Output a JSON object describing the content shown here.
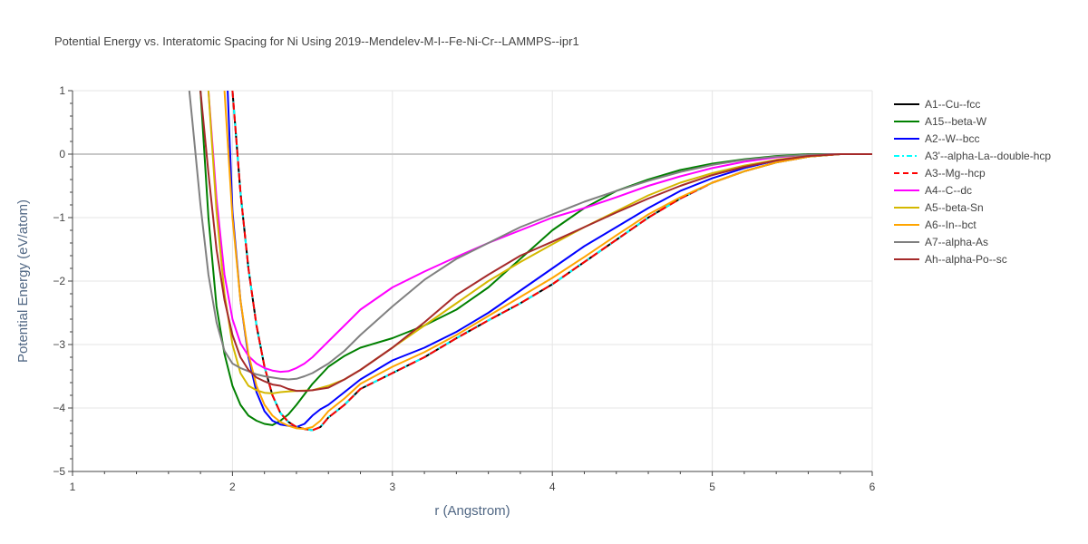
{
  "chart_data": {
    "type": "line",
    "title": "Potential Energy vs. Interatomic Spacing for Ni Using 2019--Mendelev-M-I--Fe-Ni-Cr--LAMMPS--ipr1",
    "xlabel": "r (Angstrom)",
    "ylabel": "Potential Energy (eV/atom)",
    "xlim": [
      1,
      6
    ],
    "ylim": [
      -5,
      1
    ],
    "xticks": [
      1,
      2,
      3,
      4,
      5,
      6
    ],
    "yticks": [
      -5,
      -4,
      -3,
      -2,
      -1,
      0,
      1
    ],
    "xtick_labels": [
      "1",
      "2",
      "3",
      "4",
      "5",
      "6"
    ],
    "ytick_labels": [
      "−5",
      "−4",
      "−3",
      "−2",
      "−1",
      "0",
      "1"
    ],
    "grid": true,
    "legend_position": "right",
    "series": [
      {
        "name": "A1--Cu--fcc",
        "color": "#000000",
        "dash": "solid",
        "x": [
          2.0,
          2.05,
          2.1,
          2.15,
          2.2,
          2.25,
          2.3,
          2.35,
          2.4,
          2.45,
          2.5,
          2.55,
          2.6,
          2.7,
          2.8,
          3.0,
          3.2,
          3.4,
          3.6,
          3.8,
          4.0,
          4.2,
          4.4,
          4.6,
          4.8,
          5.0,
          5.2,
          5.4,
          5.6,
          5.8,
          6.0
        ],
        "y": [
          1.0,
          -0.6,
          -1.8,
          -2.7,
          -3.35,
          -3.8,
          -4.08,
          -4.22,
          -4.3,
          -4.33,
          -4.35,
          -4.3,
          -4.15,
          -3.95,
          -3.7,
          -3.45,
          -3.2,
          -2.9,
          -2.62,
          -2.35,
          -2.05,
          -1.7,
          -1.35,
          -1.0,
          -0.7,
          -0.45,
          -0.27,
          -0.13,
          -0.04,
          0.0,
          0.0
        ]
      },
      {
        "name": "A15--beta-W",
        "color": "#008000",
        "dash": "solid",
        "x": [
          1.8,
          1.85,
          1.9,
          1.95,
          2.0,
          2.05,
          2.1,
          2.15,
          2.2,
          2.25,
          2.3,
          2.35,
          2.4,
          2.5,
          2.6,
          2.7,
          2.8,
          3.0,
          3.2,
          3.4,
          3.6,
          3.8,
          4.0,
          4.2,
          4.4,
          4.6,
          4.8,
          5.0,
          5.2,
          5.4,
          5.6,
          5.8,
          6.0
        ],
        "y": [
          1.0,
          -1.0,
          -2.4,
          -3.15,
          -3.65,
          -3.95,
          -4.12,
          -4.2,
          -4.25,
          -4.27,
          -4.2,
          -4.1,
          -3.95,
          -3.62,
          -3.35,
          -3.18,
          -3.05,
          -2.9,
          -2.7,
          -2.45,
          -2.1,
          -1.65,
          -1.2,
          -0.85,
          -0.58,
          -0.4,
          -0.25,
          -0.15,
          -0.08,
          -0.03,
          0.0,
          0.0,
          0.0
        ]
      },
      {
        "name": "A2--W--bcc",
        "color": "#0000ff",
        "dash": "solid",
        "x": [
          1.97,
          2.0,
          2.05,
          2.1,
          2.15,
          2.2,
          2.25,
          2.3,
          2.35,
          2.4,
          2.45,
          2.5,
          2.55,
          2.6,
          2.7,
          2.8,
          3.0,
          3.2,
          3.4,
          3.6,
          3.8,
          4.0,
          4.2,
          4.4,
          4.6,
          4.8,
          5.0,
          5.2,
          5.4,
          5.6,
          5.8,
          6.0
        ],
        "y": [
          1.0,
          -0.9,
          -2.3,
          -3.2,
          -3.75,
          -4.05,
          -4.2,
          -4.26,
          -4.28,
          -4.3,
          -4.25,
          -4.12,
          -4.02,
          -3.95,
          -3.75,
          -3.55,
          -3.25,
          -3.05,
          -2.8,
          -2.5,
          -2.15,
          -1.8,
          -1.45,
          -1.15,
          -0.85,
          -0.58,
          -0.38,
          -0.22,
          -0.1,
          -0.03,
          0.0,
          0.0
        ]
      },
      {
        "name": "A3'--alpha-La--double-hcp",
        "color": "#00ffff",
        "dash": "dashdot",
        "x": [
          2.0,
          2.05,
          2.1,
          2.15,
          2.2,
          2.25,
          2.3,
          2.35,
          2.4,
          2.45,
          2.5,
          2.55,
          2.6,
          2.7,
          2.8,
          3.0,
          3.2,
          3.4,
          3.6,
          3.8,
          4.0,
          4.2,
          4.4,
          4.6,
          4.8,
          5.0,
          5.2,
          5.4,
          5.6,
          5.8,
          6.0
        ],
        "y": [
          1.0,
          -0.6,
          -1.8,
          -2.7,
          -3.35,
          -3.8,
          -4.08,
          -4.22,
          -4.3,
          -4.33,
          -4.35,
          -4.3,
          -4.15,
          -3.95,
          -3.7,
          -3.45,
          -3.2,
          -2.9,
          -2.62,
          -2.35,
          -2.05,
          -1.7,
          -1.35,
          -1.0,
          -0.7,
          -0.45,
          -0.27,
          -0.13,
          -0.04,
          0.0,
          0.0
        ]
      },
      {
        "name": "A3--Mg--hcp",
        "color": "#ff0000",
        "dash": "dash",
        "x": [
          2.0,
          2.05,
          2.1,
          2.15,
          2.2,
          2.25,
          2.3,
          2.35,
          2.4,
          2.45,
          2.5,
          2.55,
          2.6,
          2.7,
          2.8,
          3.0,
          3.2,
          3.4,
          3.6,
          3.8,
          4.0,
          4.2,
          4.4,
          4.6,
          4.8,
          5.0,
          5.2,
          5.4,
          5.6,
          5.8,
          6.0
        ],
        "y": [
          1.0,
          -0.6,
          -1.8,
          -2.7,
          -3.35,
          -3.8,
          -4.08,
          -4.22,
          -4.3,
          -4.33,
          -4.35,
          -4.3,
          -4.15,
          -3.95,
          -3.7,
          -3.45,
          -3.2,
          -2.9,
          -2.62,
          -2.35,
          -2.05,
          -1.7,
          -1.35,
          -1.0,
          -0.7,
          -0.45,
          -0.27,
          -0.13,
          -0.04,
          0.0,
          0.0
        ]
      },
      {
        "name": "A4--C--dc",
        "color": "#ff00ff",
        "dash": "solid",
        "x": [
          1.85,
          1.9,
          1.95,
          2.0,
          2.05,
          2.1,
          2.15,
          2.2,
          2.25,
          2.3,
          2.35,
          2.4,
          2.45,
          2.5,
          2.6,
          2.7,
          2.8,
          3.0,
          3.2,
          3.4,
          3.6,
          3.8,
          4.0,
          4.2,
          4.4,
          4.6,
          4.8,
          5.0,
          5.2,
          5.4,
          5.6,
          5.8,
          6.0
        ],
        "y": [
          1.0,
          -0.7,
          -1.9,
          -2.6,
          -2.98,
          -3.18,
          -3.3,
          -3.37,
          -3.41,
          -3.43,
          -3.42,
          -3.37,
          -3.3,
          -3.2,
          -2.95,
          -2.7,
          -2.45,
          -2.1,
          -1.85,
          -1.62,
          -1.4,
          -1.2,
          -1.0,
          -0.85,
          -0.68,
          -0.5,
          -0.35,
          -0.22,
          -0.12,
          -0.05,
          -0.01,
          0.0,
          0.0
        ]
      },
      {
        "name": "A5--beta-Sn",
        "color": "#d4b800",
        "dash": "solid",
        "x": [
          1.85,
          1.9,
          1.95,
          2.0,
          2.05,
          2.1,
          2.15,
          2.2,
          2.25,
          2.3,
          2.35,
          2.4,
          2.5,
          2.6,
          2.7,
          2.8,
          3.0,
          3.2,
          3.4,
          3.6,
          3.8,
          4.0,
          4.2,
          4.4,
          4.6,
          4.8,
          5.0,
          5.2,
          5.4,
          5.6,
          5.8,
          6.0
        ],
        "y": [
          1.0,
          -0.9,
          -2.2,
          -3.0,
          -3.45,
          -3.65,
          -3.72,
          -3.76,
          -3.77,
          -3.75,
          -3.74,
          -3.73,
          -3.72,
          -3.65,
          -3.55,
          -3.4,
          -3.05,
          -2.7,
          -2.35,
          -2.0,
          -1.7,
          -1.42,
          -1.15,
          -0.9,
          -0.65,
          -0.45,
          -0.3,
          -0.18,
          -0.09,
          -0.03,
          0.0,
          0.0
        ]
      },
      {
        "name": "A6--In--bct",
        "color": "#ffa500",
        "dash": "solid",
        "x": [
          1.95,
          2.0,
          2.05,
          2.1,
          2.15,
          2.2,
          2.25,
          2.3,
          2.35,
          2.4,
          2.45,
          2.5,
          2.55,
          2.6,
          2.7,
          2.8,
          3.0,
          3.2,
          3.4,
          3.6,
          3.8,
          4.0,
          4.2,
          4.4,
          4.6,
          4.8,
          5.0,
          5.2,
          5.4,
          5.6,
          5.8,
          6.0
        ],
        "y": [
          1.0,
          -1.0,
          -2.3,
          -3.15,
          -3.65,
          -3.95,
          -4.12,
          -4.22,
          -4.28,
          -4.32,
          -4.33,
          -4.3,
          -4.2,
          -4.05,
          -3.85,
          -3.62,
          -3.35,
          -3.12,
          -2.85,
          -2.55,
          -2.25,
          -1.95,
          -1.62,
          -1.28,
          -0.95,
          -0.68,
          -0.45,
          -0.27,
          -0.13,
          -0.04,
          0.0,
          0.0
        ]
      },
      {
        "name": "A7--alpha-As",
        "color": "#808080",
        "dash": "solid",
        "x": [
          1.73,
          1.75,
          1.8,
          1.85,
          1.9,
          1.95,
          2.0,
          2.05,
          2.1,
          2.15,
          2.2,
          2.25,
          2.3,
          2.35,
          2.4,
          2.45,
          2.5,
          2.6,
          2.7,
          2.8,
          3.0,
          3.2,
          3.4,
          3.6,
          3.8,
          4.0,
          4.2,
          4.4,
          4.6,
          4.8,
          5.0,
          5.2,
          5.4,
          5.6,
          5.8,
          6.0
        ],
        "y": [
          1.0,
          0.5,
          -0.8,
          -1.9,
          -2.65,
          -3.1,
          -3.3,
          -3.37,
          -3.42,
          -3.47,
          -3.5,
          -3.52,
          -3.54,
          -3.55,
          -3.54,
          -3.5,
          -3.45,
          -3.3,
          -3.1,
          -2.85,
          -2.4,
          -1.98,
          -1.65,
          -1.4,
          -1.15,
          -0.95,
          -0.75,
          -0.58,
          -0.42,
          -0.28,
          -0.17,
          -0.09,
          -0.04,
          -0.01,
          0.0,
          0.0
        ]
      },
      {
        "name": "Ah--alpha-Po--sc",
        "color": "#a52a2a",
        "dash": "solid",
        "x": [
          1.8,
          1.85,
          1.9,
          1.95,
          2.0,
          2.05,
          2.1,
          2.15,
          2.2,
          2.25,
          2.3,
          2.35,
          2.4,
          2.45,
          2.5,
          2.6,
          2.7,
          2.8,
          3.0,
          3.2,
          3.4,
          3.6,
          3.8,
          4.0,
          4.2,
          4.4,
          4.6,
          4.8,
          5.0,
          5.2,
          5.4,
          5.6,
          5.8,
          6.0
        ],
        "y": [
          1.0,
          -0.3,
          -1.5,
          -2.3,
          -2.85,
          -3.2,
          -3.4,
          -3.52,
          -3.58,
          -3.63,
          -3.65,
          -3.7,
          -3.73,
          -3.73,
          -3.72,
          -3.68,
          -3.55,
          -3.4,
          -3.05,
          -2.65,
          -2.22,
          -1.9,
          -1.6,
          -1.38,
          -1.15,
          -0.92,
          -0.7,
          -0.5,
          -0.33,
          -0.2,
          -0.1,
          -0.03,
          0.0,
          0.0
        ]
      }
    ]
  }
}
